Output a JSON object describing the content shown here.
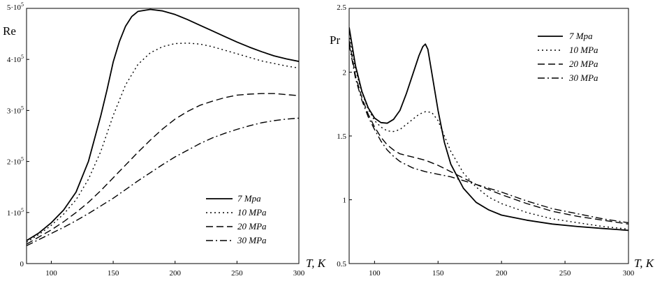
{
  "chart_data": [
    {
      "type": "line",
      "ylabel": "Re",
      "xlabel": "T, K",
      "xlim": [
        80,
        300
      ],
      "ylim": [
        0,
        500000
      ],
      "xticks": [
        100,
        150,
        200,
        250,
        300
      ],
      "yticks": [
        {
          "value": 0,
          "mant": "0",
          "exp": ""
        },
        {
          "value": 100000,
          "mant": "1·10",
          "exp": "5"
        },
        {
          "value": 200000,
          "mant": "2·10",
          "exp": "5"
        },
        {
          "value": 300000,
          "mant": "3·10",
          "exp": "5"
        },
        {
          "value": 400000,
          "mant": "4·10",
          "exp": "5"
        },
        {
          "value": 500000,
          "mant": "5·10",
          "exp": "5"
        }
      ],
      "legend_position": "bottom-right",
      "series": [
        {
          "name": "7 Mpa",
          "dash": "solid",
          "x": [
            80,
            90,
            100,
            110,
            120,
            130,
            140,
            145,
            150,
            155,
            160,
            165,
            170,
            180,
            190,
            200,
            210,
            220,
            230,
            240,
            250,
            260,
            270,
            280,
            290,
            300
          ],
          "y": [
            45000,
            60000,
            80000,
            105000,
            140000,
            200000,
            290000,
            340000,
            395000,
            435000,
            465000,
            484000,
            494000,
            498000,
            495000,
            488000,
            478000,
            467000,
            456000,
            445000,
            434000,
            424000,
            415000,
            407000,
            401000,
            396000
          ]
        },
        {
          "name": "10 MPa",
          "dash": "dot",
          "x": [
            80,
            90,
            100,
            110,
            120,
            130,
            140,
            150,
            160,
            170,
            180,
            190,
            200,
            210,
            220,
            230,
            240,
            250,
            260,
            270,
            280,
            290,
            300
          ],
          "y": [
            42000,
            57000,
            75000,
            97000,
            125000,
            165000,
            220000,
            290000,
            350000,
            390000,
            413000,
            425000,
            431000,
            432000,
            430000,
            425000,
            418000,
            411000,
            404000,
            397000,
            392000,
            387000,
            383000
          ]
        },
        {
          "name": "20 MPa",
          "dash": "dash",
          "x": [
            80,
            90,
            100,
            110,
            120,
            130,
            140,
            150,
            160,
            170,
            180,
            190,
            200,
            210,
            220,
            230,
            240,
            250,
            260,
            270,
            280,
            290,
            300
          ],
          "y": [
            38000,
            52000,
            66000,
            82000,
            100000,
            120000,
            143000,
            168000,
            193000,
            218000,
            242000,
            264000,
            283000,
            298000,
            310000,
            318000,
            325000,
            330000,
            332000,
            333000,
            333000,
            331000,
            329000
          ]
        },
        {
          "name": "30 MPa",
          "dash": "dashdot",
          "x": [
            80,
            90,
            100,
            110,
            120,
            130,
            140,
            150,
            160,
            170,
            180,
            190,
            200,
            210,
            220,
            230,
            240,
            250,
            260,
            270,
            280,
            290,
            300
          ],
          "y": [
            35000,
            47000,
            59000,
            71000,
            84000,
            98000,
            113000,
            128000,
            145000,
            162000,
            178000,
            194000,
            209000,
            222000,
            235000,
            246000,
            255000,
            263000,
            270000,
            276000,
            280000,
            283000,
            285000
          ]
        }
      ]
    },
    {
      "type": "line",
      "ylabel": "Pr",
      "xlabel": "T, K",
      "xlim": [
        80,
        300
      ],
      "ylim": [
        0.5,
        2.5
      ],
      "xticks": [
        100,
        150,
        200,
        250,
        300
      ],
      "yticks": [
        {
          "value": 0.5,
          "mant": "0.5",
          "exp": ""
        },
        {
          "value": 1,
          "mant": "1",
          "exp": ""
        },
        {
          "value": 1.5,
          "mant": "1.5",
          "exp": ""
        },
        {
          "value": 2,
          "mant": "2",
          "exp": ""
        },
        {
          "value": 2.5,
          "mant": "2.5",
          "exp": ""
        }
      ],
      "legend_position": "top-right",
      "series": [
        {
          "name": "7 Mpa",
          "dash": "solid",
          "x": [
            80,
            85,
            90,
            95,
            100,
            105,
            110,
            115,
            120,
            125,
            130,
            135,
            138,
            140,
            142,
            145,
            150,
            155,
            160,
            170,
            180,
            190,
            200,
            220,
            240,
            260,
            280,
            300
          ],
          "y": [
            2.35,
            2.05,
            1.85,
            1.72,
            1.64,
            1.605,
            1.6,
            1.63,
            1.7,
            1.83,
            1.98,
            2.13,
            2.2,
            2.22,
            2.18,
            2.0,
            1.7,
            1.45,
            1.28,
            1.09,
            0.98,
            0.92,
            0.88,
            0.84,
            0.81,
            0.79,
            0.775,
            0.76
          ]
        },
        {
          "name": "10 MPa",
          "dash": "dot",
          "x": [
            80,
            85,
            90,
            95,
            100,
            105,
            110,
            115,
            120,
            125,
            130,
            135,
            140,
            145,
            150,
            155,
            160,
            170,
            180,
            190,
            200,
            220,
            240,
            260,
            280,
            300
          ],
          "y": [
            2.3,
            2.02,
            1.84,
            1.71,
            1.62,
            1.57,
            1.54,
            1.535,
            1.55,
            1.59,
            1.63,
            1.67,
            1.69,
            1.685,
            1.62,
            1.5,
            1.38,
            1.21,
            1.1,
            1.02,
            0.97,
            0.9,
            0.85,
            0.82,
            0.79,
            0.77
          ]
        },
        {
          "name": "20 MPa",
          "dash": "dash",
          "x": [
            80,
            85,
            90,
            95,
            100,
            105,
            110,
            115,
            120,
            130,
            140,
            150,
            160,
            170,
            180,
            190,
            200,
            220,
            240,
            260,
            280,
            300
          ],
          "y": [
            2.25,
            1.97,
            1.8,
            1.67,
            1.57,
            1.49,
            1.43,
            1.39,
            1.36,
            1.335,
            1.31,
            1.27,
            1.22,
            1.17,
            1.12,
            1.08,
            1.04,
            0.97,
            0.91,
            0.87,
            0.84,
            0.81
          ]
        },
        {
          "name": "30 MPa",
          "dash": "dashdot",
          "x": [
            80,
            85,
            90,
            95,
            100,
            105,
            110,
            115,
            120,
            130,
            140,
            150,
            160,
            170,
            180,
            190,
            200,
            220,
            240,
            260,
            280,
            300
          ],
          "y": [
            2.22,
            1.95,
            1.78,
            1.65,
            1.55,
            1.46,
            1.39,
            1.34,
            1.3,
            1.25,
            1.22,
            1.2,
            1.18,
            1.15,
            1.12,
            1.09,
            1.06,
            0.99,
            0.93,
            0.89,
            0.85,
            0.82
          ]
        }
      ]
    }
  ]
}
